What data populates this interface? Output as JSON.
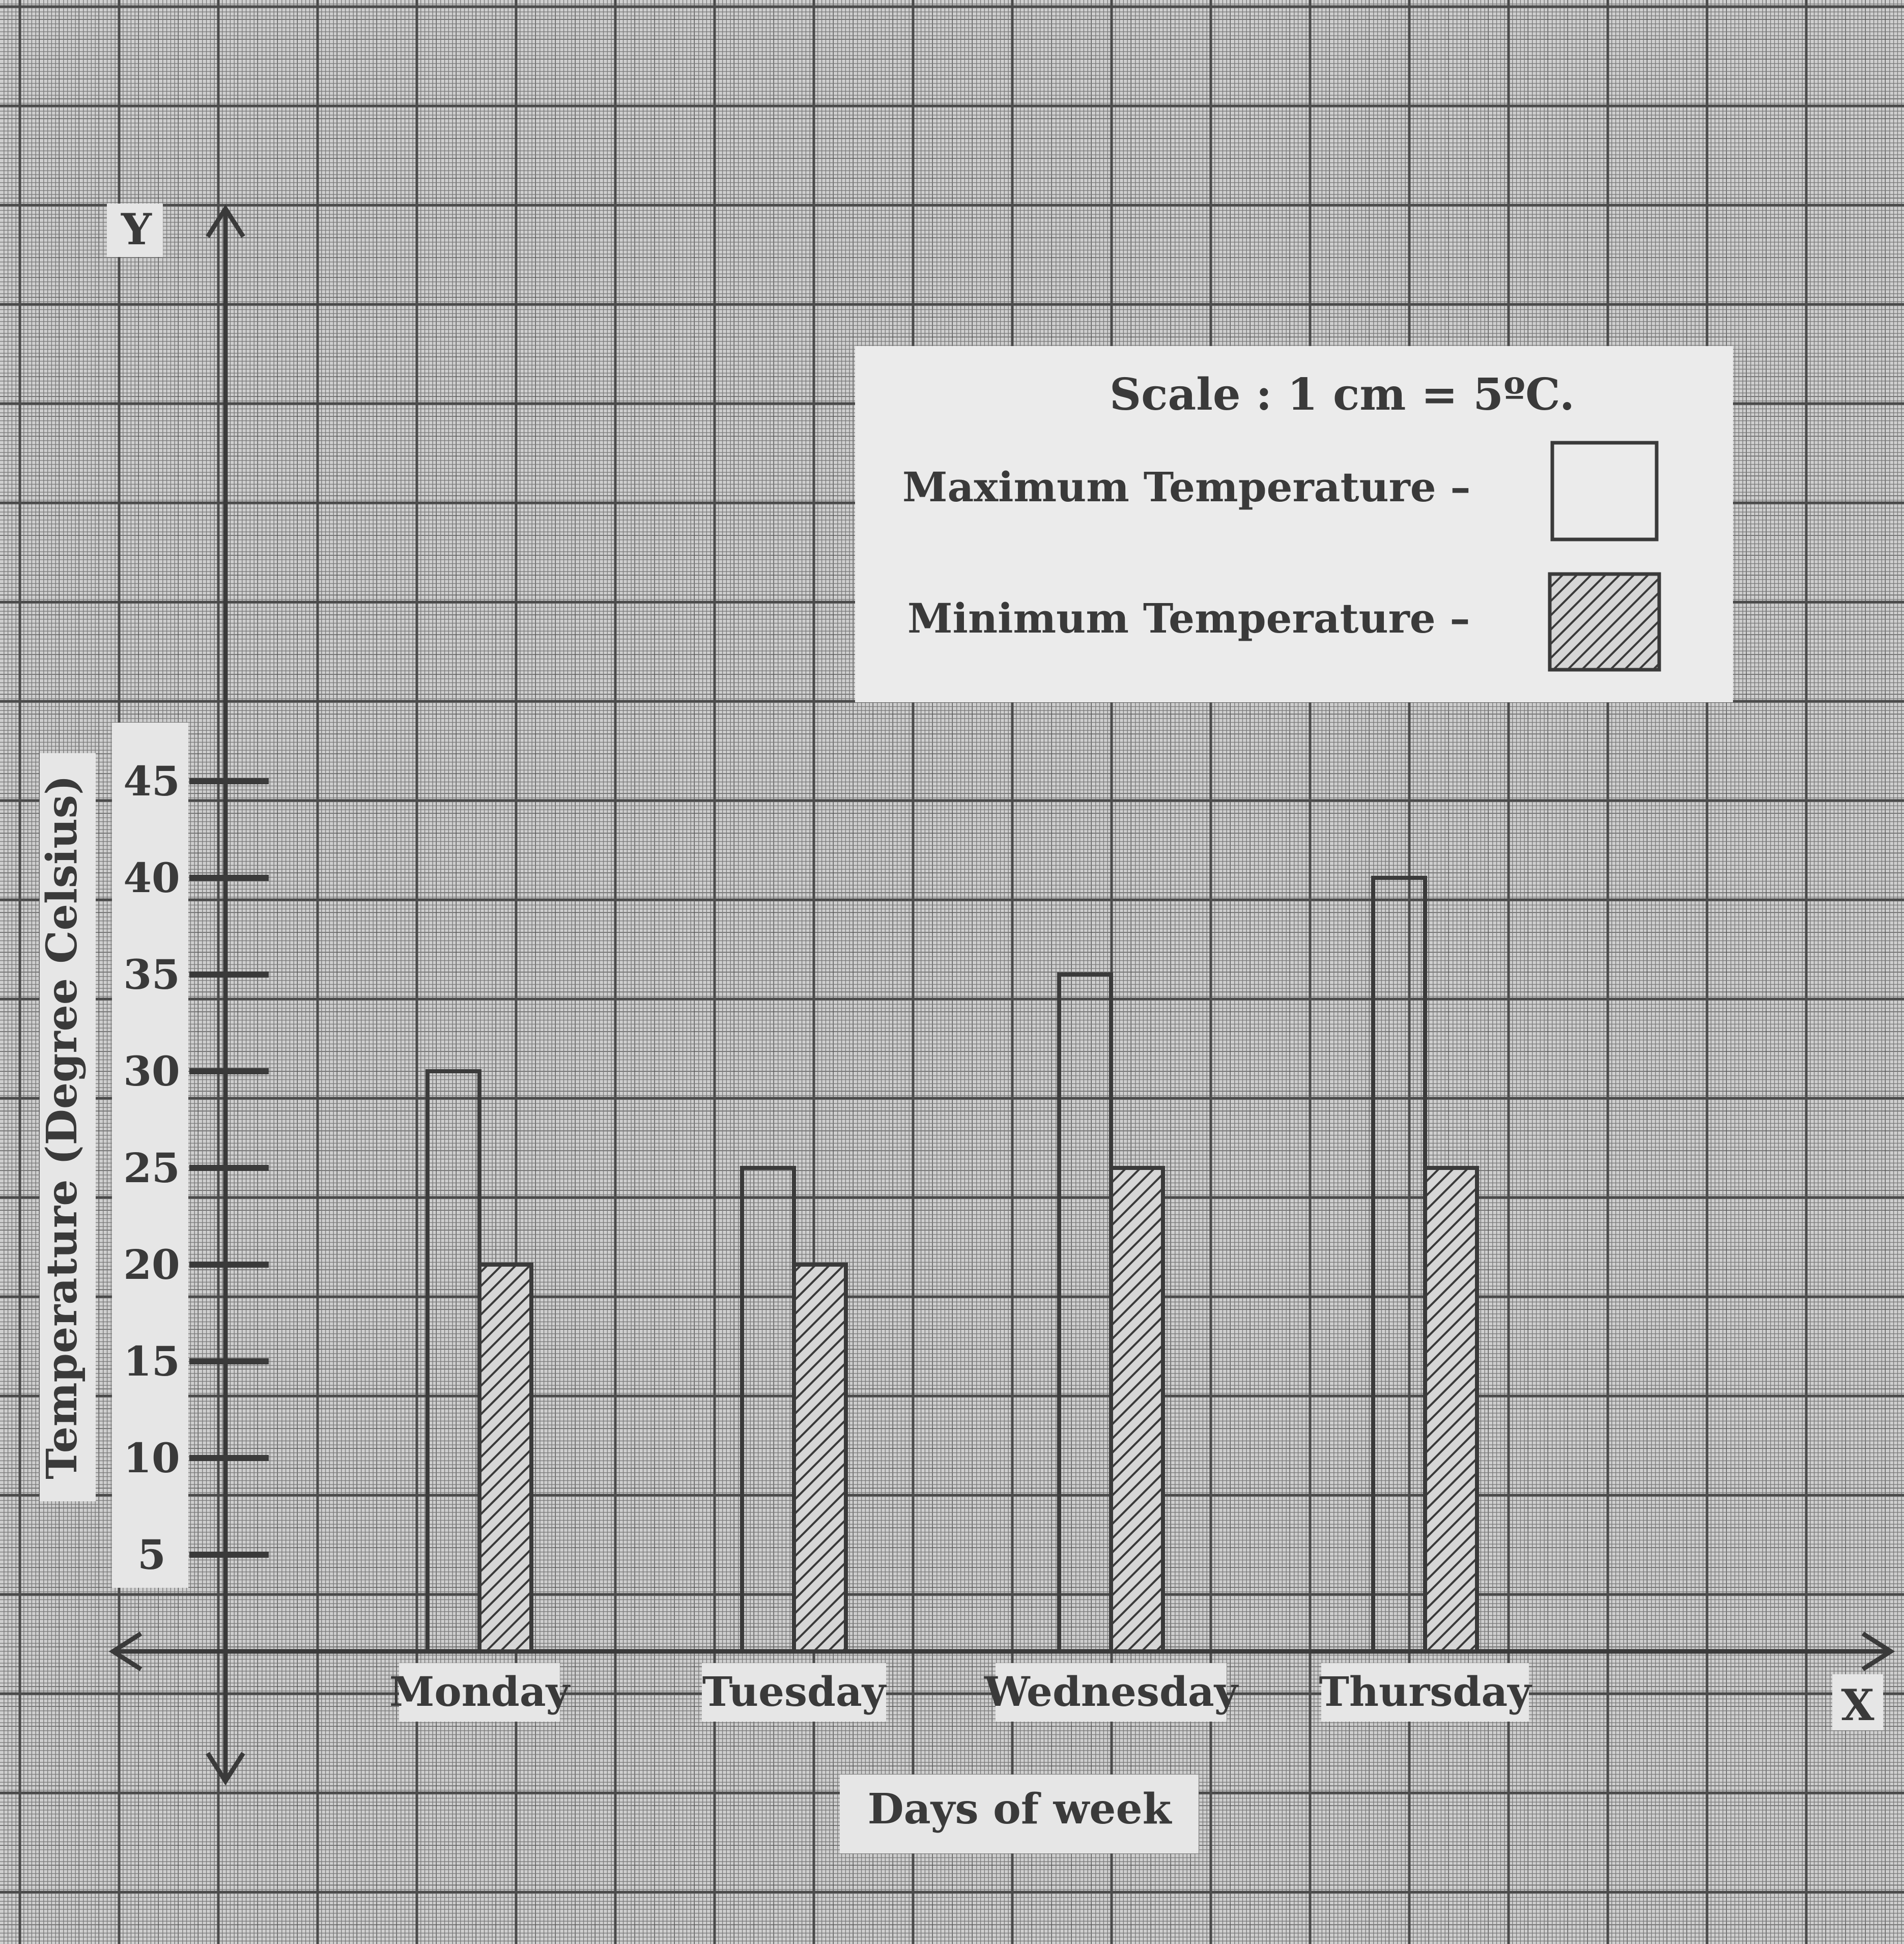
{
  "chart_data": {
    "type": "bar",
    "axis_letters": {
      "x": "X",
      "y": "Y"
    },
    "xlabel": "Days of week",
    "ylabel": "Temperature (Degree Celsius)",
    "categories": [
      "Monday",
      "Tuesday",
      "Wednesday",
      "Thursday"
    ],
    "series": [
      {
        "name": "Maximum Temperature –",
        "values": [
          30,
          25,
          35,
          40
        ],
        "pattern": "plain"
      },
      {
        "name": "Minimum Temperature –",
        "values": [
          20,
          20,
          25,
          25
        ],
        "pattern": "hatched"
      }
    ],
    "yticks": [
      5,
      10,
      15,
      20,
      25,
      30,
      35,
      40,
      45
    ],
    "ylim": [
      0,
      45
    ],
    "scale_note": "Scale :  1 cm = 5ºC.",
    "grid": true,
    "legend_placement": "top-right",
    "colors": {
      "paper": "#cfcfcf",
      "grid": "#555555",
      "ink": "#3a3a3a",
      "label_bg": "#ececec"
    }
  }
}
